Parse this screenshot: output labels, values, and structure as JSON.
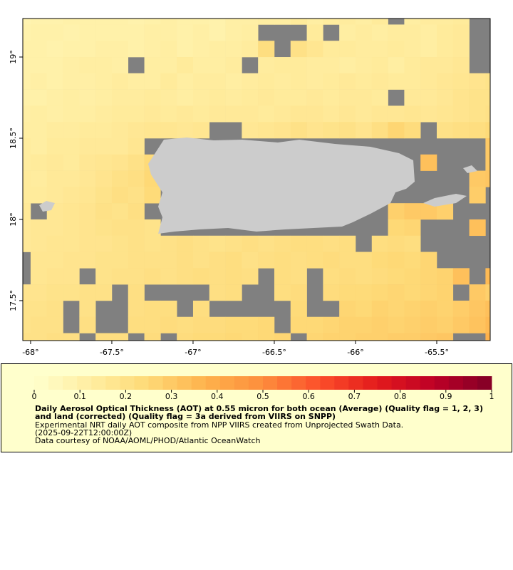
{
  "chart_data": {
    "type": "heatmap",
    "x": [
      -68.05,
      -67.95,
      -67.85,
      -67.75,
      -67.65,
      -67.55,
      -67.45,
      -67.35,
      -67.25,
      -67.15,
      -67.05,
      -66.95,
      -66.85,
      -66.75,
      -66.65,
      -66.55,
      -66.45,
      -66.35,
      -66.25,
      -66.15,
      -66.05,
      -65.95,
      -65.85,
      -65.75,
      -65.65,
      -65.55,
      -65.45,
      -65.35,
      -65.25,
      -65.15
    ],
    "y": [
      19.25,
      19.15,
      19.05,
      18.95,
      18.85,
      18.75,
      18.65,
      18.55,
      18.45,
      18.35,
      18.25,
      18.15,
      18.05,
      17.95,
      17.85,
      17.75,
      17.65,
      17.55,
      17.45,
      17.35,
      17.25
    ],
    "values": [
      [
        0.08,
        0.09,
        0.09,
        0.1,
        0.1,
        0.1,
        0.1,
        0.09,
        0.1,
        0.11,
        0.1,
        0.1,
        0.09,
        0.11,
        0.11,
        0.12,
        0.12,
        0.14,
        0.12,
        0.13,
        0.13,
        0.12,
        0.14,
        null,
        0.12,
        0.13,
        0.13,
        0.14,
        null,
        null
      ],
      [
        0.09,
        0.1,
        0.1,
        0.09,
        0.1,
        0.1,
        0.1,
        0.1,
        0.11,
        0.11,
        0.1,
        0.11,
        0.09,
        0.11,
        0.12,
        null,
        null,
        null,
        0.14,
        null,
        0.12,
        0.13,
        0.12,
        0.13,
        0.13,
        0.12,
        0.14,
        0.15,
        null,
        null
      ],
      [
        0.1,
        0.1,
        0.09,
        0.1,
        0.1,
        0.11,
        0.11,
        0.1,
        0.11,
        0.12,
        0.1,
        0.11,
        0.12,
        0.12,
        0.13,
        0.22,
        null,
        0.2,
        0.17,
        0.14,
        0.14,
        0.13,
        0.13,
        0.14,
        0.13,
        0.12,
        0.14,
        0.15,
        null,
        null
      ],
      [
        0.1,
        0.1,
        0.1,
        0.11,
        0.12,
        0.12,
        0.11,
        null,
        0.12,
        0.12,
        0.14,
        0.12,
        0.12,
        0.13,
        null,
        0.13,
        0.14,
        0.14,
        0.13,
        0.13,
        0.12,
        0.13,
        0.14,
        0.12,
        0.14,
        0.15,
        0.15,
        0.16,
        null,
        null
      ],
      [
        0.1,
        0.11,
        0.1,
        0.11,
        0.11,
        0.12,
        0.13,
        0.12,
        0.12,
        0.14,
        0.12,
        0.13,
        0.13,
        0.12,
        0.13,
        0.14,
        0.13,
        0.14,
        0.13,
        0.14,
        0.15,
        0.14,
        0.15,
        0.14,
        0.14,
        0.15,
        0.16,
        0.17,
        0.18,
        0.19
      ],
      [
        0.1,
        0.1,
        0.11,
        0.12,
        0.11,
        0.12,
        0.13,
        0.13,
        0.14,
        0.13,
        0.12,
        0.13,
        0.14,
        0.13,
        0.14,
        0.15,
        0.14,
        0.14,
        0.15,
        0.14,
        0.15,
        0.15,
        0.14,
        null,
        0.15,
        0.15,
        0.16,
        0.18,
        0.19,
        0.19
      ],
      [
        0.11,
        0.12,
        0.11,
        0.12,
        0.12,
        0.13,
        0.14,
        0.14,
        0.15,
        0.14,
        0.15,
        0.14,
        0.15,
        0.15,
        0.15,
        0.14,
        0.15,
        0.16,
        0.16,
        0.15,
        0.16,
        0.15,
        0.16,
        0.16,
        0.17,
        0.16,
        0.17,
        0.18,
        0.19,
        0.2
      ],
      [
        0.12,
        0.12,
        0.13,
        0.13,
        0.14,
        0.14,
        0.15,
        0.16,
        0.17,
        0.17,
        0.16,
        0.17,
        null,
        null,
        0.16,
        0.17,
        0.18,
        0.2,
        0.18,
        0.19,
        0.2,
        0.18,
        0.21,
        0.26,
        0.23,
        null,
        0.2,
        0.21,
        0.22,
        0.24
      ],
      [
        0.13,
        0.12,
        0.14,
        0.14,
        0.15,
        0.15,
        0.15,
        0.17,
        null,
        null,
        null,
        null,
        null,
        null,
        null,
        null,
        null,
        null,
        null,
        null,
        null,
        null,
        null,
        null,
        null,
        null,
        null,
        null,
        null,
        0.3
      ],
      [
        0.13,
        0.14,
        0.15,
        0.14,
        0.16,
        0.17,
        0.18,
        0.2,
        0.24,
        null,
        null,
        null,
        null,
        null,
        null,
        null,
        null,
        null,
        null,
        null,
        null,
        null,
        null,
        null,
        null,
        0.33,
        null,
        null,
        null,
        0.3
      ],
      [
        0.14,
        0.13,
        0.15,
        0.15,
        0.16,
        0.18,
        0.2,
        0.21,
        0.25,
        null,
        null,
        null,
        null,
        null,
        null,
        null,
        null,
        null,
        null,
        null,
        null,
        null,
        null,
        null,
        null,
        null,
        null,
        null,
        0.3,
        0.31
      ],
      [
        0.14,
        0.14,
        0.15,
        0.16,
        0.17,
        0.19,
        0.21,
        0.2,
        0.24,
        null,
        null,
        null,
        null,
        null,
        null,
        null,
        null,
        null,
        null,
        null,
        null,
        null,
        null,
        null,
        null,
        null,
        null,
        null,
        0.29,
        null
      ],
      [
        0.15,
        null,
        0.16,
        0.17,
        0.18,
        0.2,
        0.19,
        0.21,
        null,
        null,
        null,
        null,
        null,
        null,
        null,
        null,
        null,
        null,
        null,
        null,
        null,
        null,
        null,
        0.28,
        0.3,
        0.3,
        0.28,
        null,
        null,
        null
      ],
      [
        0.15,
        0.16,
        0.16,
        0.17,
        0.18,
        0.19,
        0.2,
        0.2,
        0.19,
        null,
        null,
        null,
        null,
        null,
        null,
        null,
        null,
        null,
        null,
        null,
        null,
        null,
        null,
        0.25,
        0.26,
        null,
        null,
        null,
        0.33,
        null
      ],
      [
        0.15,
        0.16,
        0.17,
        0.17,
        0.18,
        0.18,
        0.19,
        0.2,
        0.19,
        0.2,
        0.21,
        0.2,
        0.19,
        0.2,
        0.21,
        0.2,
        0.21,
        0.22,
        0.22,
        0.21,
        0.22,
        null,
        0.22,
        0.23,
        0.22,
        null,
        null,
        null,
        null,
        null
      ],
      [
        null,
        0.17,
        0.17,
        0.18,
        0.18,
        0.19,
        0.19,
        0.2,
        0.2,
        0.2,
        0.21,
        0.2,
        0.21,
        0.22,
        0.2,
        0.21,
        0.22,
        0.21,
        0.22,
        0.23,
        0.22,
        0.22,
        0.24,
        0.25,
        0.24,
        0.26,
        null,
        null,
        null,
        null
      ],
      [
        null,
        0.17,
        0.18,
        0.18,
        null,
        0.19,
        0.2,
        0.2,
        0.21,
        0.2,
        0.21,
        0.22,
        0.21,
        0.22,
        0.21,
        null,
        0.22,
        0.21,
        null,
        0.22,
        0.23,
        0.22,
        0.23,
        0.24,
        0.25,
        0.26,
        0.27,
        0.33,
        null,
        0.35
      ],
      [
        0.18,
        0.18,
        0.19,
        0.19,
        0.2,
        0.2,
        null,
        0.21,
        null,
        null,
        null,
        null,
        0.21,
        0.22,
        null,
        null,
        0.22,
        0.23,
        null,
        0.23,
        0.24,
        0.24,
        0.25,
        0.26,
        0.25,
        0.26,
        0.27,
        null,
        0.3,
        0.28
      ],
      [
        0.19,
        0.19,
        0.2,
        null,
        0.2,
        null,
        null,
        0.21,
        0.22,
        0.22,
        null,
        0.22,
        null,
        null,
        null,
        null,
        null,
        0.24,
        null,
        null,
        0.26,
        0.25,
        0.27,
        0.26,
        0.27,
        0.28,
        0.27,
        0.29,
        0.31,
        0.33
      ],
      [
        0.19,
        0.2,
        0.2,
        null,
        0.21,
        null,
        null,
        0.22,
        0.22,
        0.23,
        0.22,
        0.23,
        0.23,
        0.24,
        0.24,
        0.25,
        null,
        0.25,
        0.25,
        0.26,
        0.27,
        0.27,
        0.28,
        0.27,
        0.28,
        0.29,
        0.28,
        0.3,
        0.32,
        0.35
      ],
      [
        0.2,
        0.2,
        0.21,
        0.21,
        null,
        0.22,
        0.22,
        null,
        0.23,
        null,
        0.23,
        0.24,
        0.24,
        0.25,
        0.24,
        0.25,
        0.26,
        null,
        0.26,
        0.27,
        0.27,
        0.28,
        0.28,
        0.29,
        0.29,
        0.3,
        0.31,
        null,
        null,
        0.38
      ]
    ],
    "xlim": [
      -68.048,
      -65.171
    ],
    "ylim": [
      17.254,
      19.237
    ],
    "xticks": [
      {
        "value": -68,
        "label": "-68°"
      },
      {
        "value": -67.5,
        "label": "-67.5°"
      },
      {
        "value": -67,
        "label": "-67°"
      },
      {
        "value": -66.5,
        "label": "-66.5°"
      },
      {
        "value": -66,
        "label": "-66°"
      },
      {
        "value": -65.5,
        "label": "-65.5°"
      }
    ],
    "yticks": [
      {
        "value": 17.5,
        "label": "17.5°"
      },
      {
        "value": 18,
        "label": "18°"
      },
      {
        "value": 18.5,
        "label": "18.5°"
      },
      {
        "value": 19,
        "label": "19°"
      }
    ],
    "colorbar": {
      "range": [
        0,
        1
      ],
      "ticks": [
        0,
        0.1,
        0.2,
        0.3,
        0.4,
        0.5,
        0.6,
        0.7,
        0.8,
        0.9,
        1
      ],
      "colors": [
        "#ffffcc",
        "#ffeda0",
        "#fed976",
        "#feb24c",
        "#fd8d3c",
        "#fc4e2a",
        "#e31a1c",
        "#bd0026",
        "#800026"
      ]
    },
    "title": "Daily Aerosol Optical Thickness (AOT) at 0.55 micron for both ocean (Average) (Quality flag = 1, 2, 3) and land (corrected) (Quality flag = 3a derived from VIIRS on SNPP)",
    "notes": [
      "Experimental NRT daily AOT composite from NPP VIIRS created from Unprojected Swath Data.",
      "(2025-09-22T12:00:00Z)",
      "Data courtesy of NOAA/AOML/PHOD/Atlantic OceanWatch"
    ]
  }
}
